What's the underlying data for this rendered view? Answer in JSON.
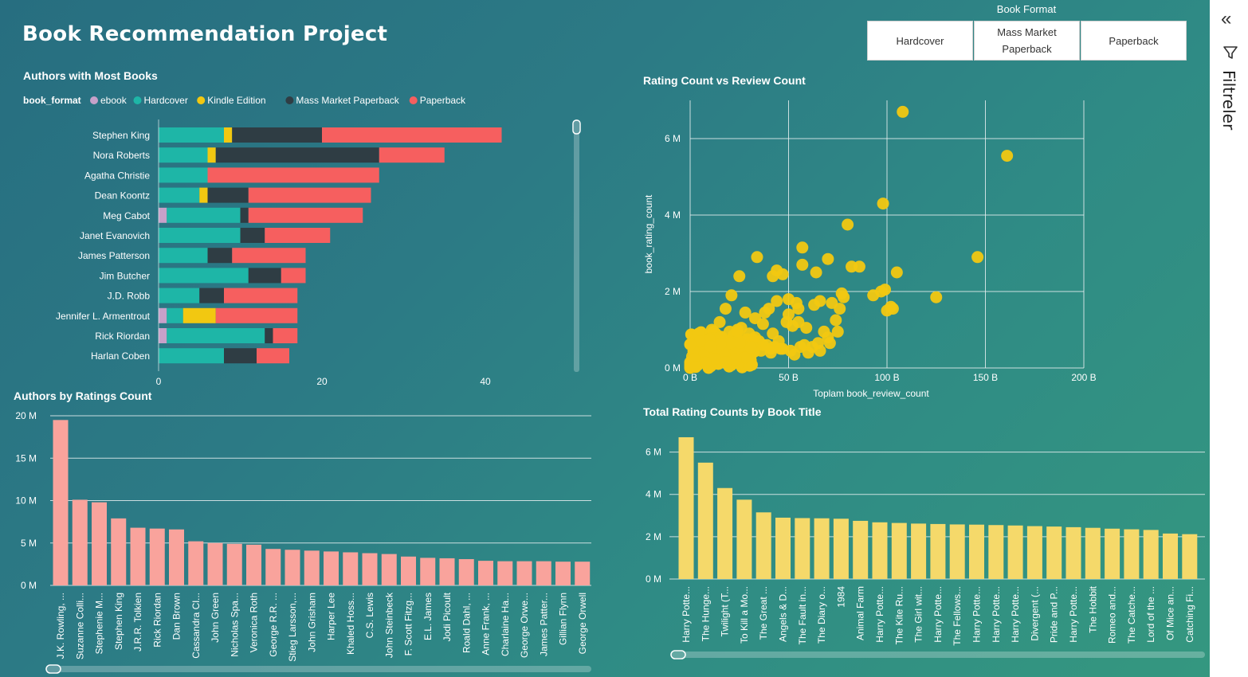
{
  "title": "Book Recommendation Project",
  "slicer": {
    "title": "Book Format",
    "options": [
      {
        "line1": "Hardcover",
        "line2": ""
      },
      {
        "line1": "Mass Market",
        "line2": "Paperback"
      },
      {
        "line1": "Paperback",
        "line2": ""
      }
    ]
  },
  "filters_panel": {
    "label": "Filtreler",
    "collapse_icon": "double-chevron-left-icon",
    "filter_icon": "funnel-icon"
  },
  "colors": {
    "ebook": "#c7a1c9",
    "Hardcover": "#1eb6a7",
    "Kindle Edition": "#f2c811",
    "Mass Market Paperback": "#2f3d44",
    "Paperback": "#f65f5f",
    "ratings_bar": "#f9a39c",
    "title_bar": "#f5d96a",
    "scatter": "#f2c811",
    "grid": "#e6eef0"
  },
  "chart_data": [
    {
      "type": "bar",
      "orientation": "horizontal",
      "stacked": true,
      "title": "Authors with Most Books",
      "legend_title": "book_format",
      "legend_position": "top-left",
      "categories": [
        "Stephen King",
        "Nora Roberts",
        "Agatha Christie",
        "Dean Koontz",
        "Meg Cabot",
        "Janet Evanovich",
        "James Patterson",
        "Jim Butcher",
        "J.D. Robb",
        "Jennifer L. Armentrout",
        "Rick Riordan",
        "Harlan Coben"
      ],
      "series": [
        {
          "name": "ebook",
          "values": [
            0,
            0,
            0,
            0,
            1,
            0,
            0,
            0,
            0,
            1,
            1,
            0
          ]
        },
        {
          "name": "Hardcover",
          "values": [
            8,
            6,
            6,
            5,
            9,
            10,
            6,
            11,
            5,
            2,
            12,
            8
          ]
        },
        {
          "name": "Kindle Edition",
          "values": [
            1,
            1,
            0,
            1,
            0,
            0,
            0,
            0,
            0,
            4,
            0,
            0
          ]
        },
        {
          "name": "Mass Market Paperback",
          "values": [
            11,
            20,
            0,
            5,
            1,
            3,
            3,
            4,
            3,
            0,
            1,
            4
          ]
        },
        {
          "name": "Paperback",
          "values": [
            22,
            8,
            21,
            15,
            14,
            8,
            9,
            3,
            9,
            10,
            3,
            4
          ]
        }
      ],
      "xlim": [
        0,
        50
      ],
      "x_ticks": [
        "0",
        "20",
        "40"
      ],
      "grid": false
    },
    {
      "type": "scatter",
      "title": "Rating Count vs Review Count",
      "xlabel": "Toplam book_review_count",
      "ylabel": "book_rating_count",
      "x_ticks": [
        "0 B",
        "50 B",
        "100 B",
        "150 B",
        "200 B"
      ],
      "y_ticks": [
        "0 M",
        "2 M",
        "4 M",
        "6 M"
      ],
      "xlim": [
        0,
        200
      ],
      "ylim": [
        0,
        7
      ],
      "grid": true,
      "x": [
        108,
        161,
        80,
        98,
        57,
        146,
        125,
        70,
        57,
        82,
        86,
        64,
        66,
        50,
        47,
        21,
        25,
        34,
        42,
        44,
        105,
        93,
        97,
        99,
        100,
        103,
        102,
        78,
        77,
        72,
        63,
        54,
        55,
        44,
        38,
        40,
        49,
        50,
        52,
        55,
        59,
        68,
        75,
        74,
        76,
        70,
        45,
        42,
        37,
        33,
        28,
        24,
        18,
        15,
        12,
        10,
        8,
        6,
        4,
        2,
        1,
        0,
        3,
        5,
        7,
        9,
        11,
        13,
        16,
        20,
        22,
        26,
        30,
        32,
        35,
        39,
        43,
        47,
        51,
        56,
        60,
        65,
        30,
        27,
        23,
        19,
        17,
        14,
        12,
        9,
        7,
        5,
        3,
        2,
        1,
        0,
        4,
        6,
        8,
        10,
        14,
        18,
        22,
        26,
        31,
        36,
        41,
        46,
        53,
        58,
        62,
        66,
        71,
        25,
        29,
        33,
        37,
        41,
        15,
        19,
        23,
        27,
        11,
        13,
        16,
        21,
        24,
        28,
        6,
        9,
        3,
        5,
        1,
        2,
        0,
        4
      ],
      "y": [
        6.7,
        5.55,
        3.75,
        4.3,
        3.15,
        2.9,
        1.85,
        2.85,
        2.7,
        2.65,
        2.65,
        2.5,
        1.75,
        1.8,
        2.45,
        1.9,
        2.4,
        2.9,
        2.4,
        2.55,
        2.5,
        1.9,
        2.0,
        2.05,
        1.5,
        1.55,
        1.6,
        1.85,
        1.95,
        1.7,
        1.65,
        1.7,
        1.55,
        1.75,
        1.45,
        1.55,
        1.2,
        1.4,
        1.1,
        1.2,
        1.05,
        0.95,
        0.95,
        1.25,
        1.55,
        0.8,
        0.7,
        0.9,
        1.15,
        1.3,
        1.45,
        1.0,
        1.55,
        1.2,
        0.95,
        0.75,
        0.6,
        0.45,
        0.35,
        0.25,
        0.15,
        0.1,
        0.3,
        0.5,
        0.7,
        0.85,
        1.0,
        0.9,
        0.8,
        0.95,
        0.85,
        1.05,
        0.9,
        0.75,
        0.7,
        0.6,
        0.55,
        0.5,
        0.45,
        0.55,
        0.4,
        0.65,
        0.6,
        0.5,
        0.45,
        0.55,
        0.4,
        0.35,
        0.3,
        0.25,
        0.2,
        0.15,
        0.12,
        0.08,
        0.05,
        0.05,
        0.18,
        0.22,
        0.28,
        0.32,
        0.35,
        0.4,
        0.3,
        0.25,
        0.35,
        0.45,
        0.4,
        0.5,
        0.35,
        0.6,
        0.55,
        0.45,
        0.65,
        0.7,
        0.75,
        0.8,
        0.6,
        0.5,
        0.65,
        0.7,
        0.55,
        0.75,
        0.8,
        0.5,
        0.45,
        0.35,
        0.95,
        0.55,
        0.65,
        0.45,
        0.25,
        0.4,
        0.3,
        0.2,
        0.15,
        0.12
      ]
    },
    {
      "type": "bar",
      "title": "Authors by Ratings Count",
      "categories": [
        "J.K. Rowling, ...",
        "Suzanne Colli...",
        "Stephenie M...",
        "Stephen King",
        "J.R.R. Tolkien",
        "Rick Riordan",
        "Dan Brown",
        "Cassandra Cl...",
        "John Green",
        "Nicholas Spa...",
        "Veronica Roth",
        "George R.R. ...",
        "Stieg Larsson,...",
        "John Grisham",
        "Harper Lee",
        "Khaled Hoss...",
        "C.S. Lewis",
        "John Steinbeck",
        "F. Scott Fitzg...",
        "E.L. James",
        "Jodi Picoult",
        "Roald Dahl, ...",
        "Anne Frank, ...",
        "Charlaine Ha...",
        "George Orwe...",
        "James Patter...",
        "Gillian Flynn",
        "George Orwell"
      ],
      "values": [
        19.5,
        10.1,
        9.8,
        7.9,
        6.8,
        6.7,
        6.6,
        5.2,
        5.0,
        4.9,
        4.8,
        4.3,
        4.2,
        4.1,
        4.0,
        3.9,
        3.8,
        3.7,
        3.4,
        3.25,
        3.2,
        3.1,
        2.9,
        2.85,
        2.85,
        2.85,
        2.8,
        2.8
      ],
      "y_ticks": [
        "0 M",
        "5 M",
        "10 M",
        "15 M",
        "20 M"
      ],
      "ylim": [
        0,
        20
      ],
      "grid": true
    },
    {
      "type": "bar",
      "title": "Total Rating Counts by Book Title",
      "categories": [
        "Harry Potte...",
        "The Hunge...",
        "Twilight (T...",
        "To Kill a Mo...",
        "The Great ...",
        "Angels & D...",
        "The Fault in...",
        "The Diary o...",
        "1984",
        "Animal Farm",
        "Harry Potte...",
        "The Kite Ru...",
        "The Girl wit...",
        "Harry Potte...",
        "The Fellows...",
        "Harry Potte...",
        "Harry Potte...",
        "Harry Potte...",
        "Divergent (...",
        "Pride and P...",
        "Harry Potte...",
        "The Hobbit",
        "Romeo and...",
        "The Catche...",
        "Lord of the ...",
        "Of Mice an...",
        "Catching Fi..."
      ],
      "values": [
        6.7,
        5.5,
        4.3,
        3.75,
        3.15,
        2.9,
        2.88,
        2.87,
        2.85,
        2.75,
        2.68,
        2.65,
        2.62,
        2.6,
        2.58,
        2.57,
        2.55,
        2.53,
        2.5,
        2.48,
        2.45,
        2.42,
        2.38,
        2.35,
        2.32,
        2.15,
        2.12
      ],
      "y_ticks": [
        "0 M",
        "2 M",
        "4 M",
        "6 M"
      ],
      "ylim": [
        0,
        7
      ],
      "grid": true
    }
  ]
}
